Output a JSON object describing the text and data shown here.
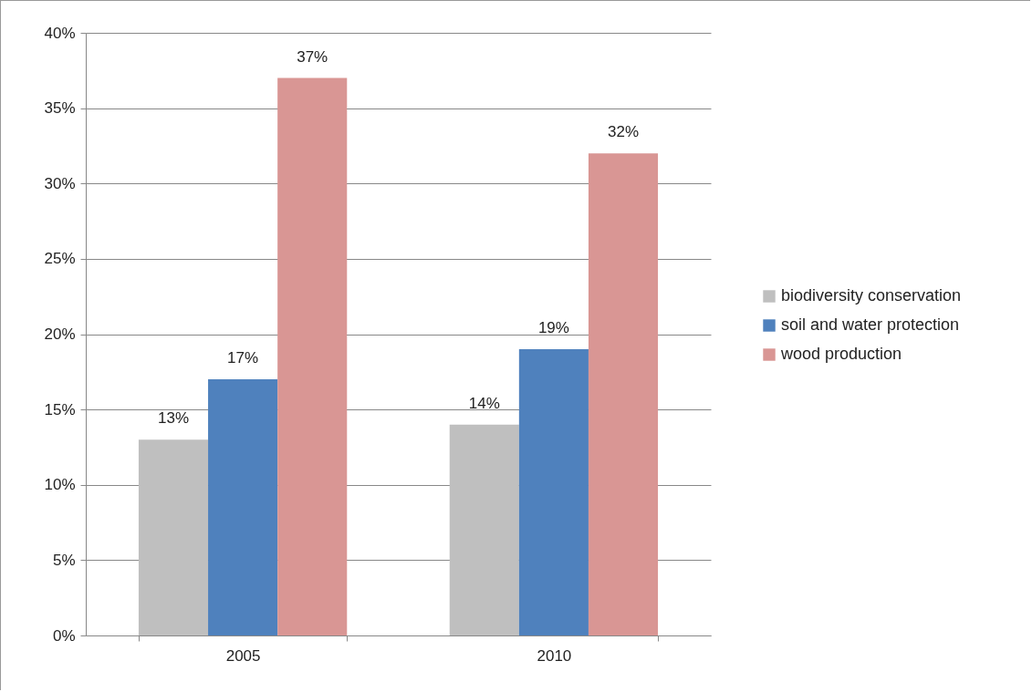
{
  "chart_data": {
    "type": "bar",
    "categories": [
      "2005",
      "2010"
    ],
    "series": [
      {
        "name": "biodiversity conservation",
        "color": "#bfbfbf",
        "values": [
          13,
          14
        ],
        "value_labels": [
          "13%",
          "14%"
        ]
      },
      {
        "name": "soil and water protection",
        "color": "#4f81bd",
        "values": [
          17,
          19
        ],
        "value_labels": [
          "17%",
          "19%"
        ]
      },
      {
        "name": "wood production",
        "color": "#d99694",
        "values": [
          37,
          32
        ],
        "value_labels": [
          "37%",
          "32%"
        ]
      }
    ],
    "ylim": [
      0,
      40
    ],
    "yticks": [
      {
        "value": 0,
        "label": "0%"
      },
      {
        "value": 5,
        "label": "5%"
      },
      {
        "value": 10,
        "label": "10%"
      },
      {
        "value": 15,
        "label": "15%"
      },
      {
        "value": 20,
        "label": "20%"
      },
      {
        "value": 25,
        "label": "25%"
      },
      {
        "value": 30,
        "label": "30%"
      },
      {
        "value": 35,
        "label": "35%"
      },
      {
        "value": 40,
        "label": "40%"
      }
    ],
    "grid": "y",
    "legend": "right"
  }
}
